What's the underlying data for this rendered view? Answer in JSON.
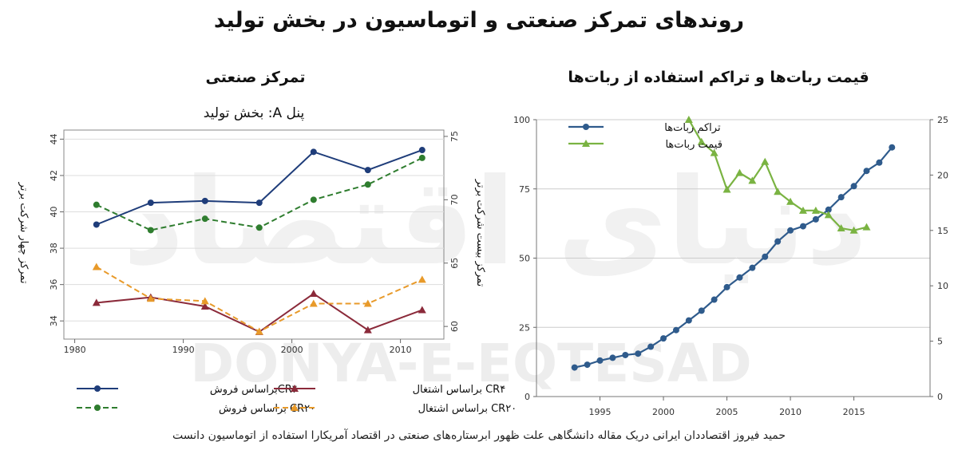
{
  "title": "روندهای تمرکز صنعتی و اتوماسیون در بخش تولید",
  "caption": "حمید فیروز اقتصاددان ایرانی دریک مقاله دانشگاهی علت ظهور ابرستاره‌های صنعتی در اقتصاد آمریکارا استفاده از اتوماسیون دانست",
  "watermark": {
    "latin": "DONYA-E-EQTESAD",
    "persian": "دنیای اقتصاد"
  },
  "colors": {
    "navy": "#1f3d7a",
    "maroon": "#8b2a3a",
    "green": "#2f7d2f",
    "orange": "#e89a2a",
    "blue": "#2f5b8c",
    "lime": "#7ab342"
  },
  "chart_data": [
    {
      "type": "line",
      "section_title": "تمرکز صنعتی",
      "title": "پنل A: بخش تولید",
      "xlabel": "",
      "ylabel_left": "تمرکز چهار شرکت برتر",
      "ylabel_right": "تمرکز بیست شرکت برتر",
      "xlim": [
        1979,
        2014
      ],
      "ylim_left": [
        33,
        44.5
      ],
      "ylim_right": [
        59,
        75.5
      ],
      "x_ticks": [
        1980,
        1990,
        2000,
        2010
      ],
      "y_ticks_left": [
        34,
        36,
        38,
        40,
        42,
        44
      ],
      "y_ticks_right": [
        60,
        65,
        70,
        75
      ],
      "legend": "bottom",
      "x": [
        1982,
        1987,
        1992,
        1997,
        2002,
        2007,
        2012
      ],
      "series": [
        {
          "name": "CR۴براساس فروش",
          "axis": "left",
          "dash": false,
          "marker": "circle",
          "color": "#1f3d7a",
          "values": [
            39.3,
            40.5,
            40.6,
            40.5,
            43.3,
            42.3,
            43.4
          ]
        },
        {
          "name": "CR۴  براساس اشتغال",
          "axis": "left",
          "dash": false,
          "marker": "triangle",
          "color": "#8b2a3a",
          "values": [
            35.0,
            35.3,
            34.8,
            33.4,
            35.5,
            33.5,
            34.6
          ]
        },
        {
          "name": "CR۲۰  براساس فروش",
          "axis": "right",
          "dash": true,
          "marker": "circle",
          "color": "#2f7d2f",
          "values": [
            69.6,
            67.6,
            68.5,
            67.8,
            70.0,
            71.2,
            73.3
          ]
        },
        {
          "name": "CR۲۰  براساس اشتغال",
          "axis": "right",
          "dash": true,
          "marker": "triangle",
          "color": "#e89a2a",
          "values": [
            64.7,
            62.2,
            62.0,
            59.6,
            61.8,
            61.8,
            63.7
          ]
        }
      ]
    },
    {
      "type": "line",
      "section_title": "قیمت ربات‌ها و تراکم استفاده از ربات‌ها",
      "title": "",
      "xlabel": "",
      "xlim": [
        1990,
        2021
      ],
      "ylim_left": [
        0,
        100
      ],
      "ylim_right": [
        0,
        25
      ],
      "x_ticks": [
        1995,
        2000,
        2005,
        2010,
        2015
      ],
      "y_ticks_left": [
        0,
        25,
        50,
        75,
        100
      ],
      "y_ticks_right": [
        0,
        5,
        10,
        15,
        20,
        25
      ],
      "legend": "top-left",
      "series": [
        {
          "name": "تراکم ربات‌ها",
          "axis": "left",
          "marker": "circle",
          "color": "#2f5b8c",
          "x": [
            1993,
            1994,
            1995,
            1996,
            1997,
            1998,
            1999,
            2000,
            2001,
            2002,
            2003,
            2004,
            2005,
            2006,
            2007,
            2008,
            2009,
            2010,
            2011,
            2012,
            2013,
            2014,
            2015,
            2016,
            2017,
            2018
          ],
          "values": [
            10.5,
            11.5,
            13,
            14,
            15,
            15.5,
            18,
            21,
            24,
            27.5,
            31,
            35,
            39.5,
            43,
            46.5,
            50.5,
            56,
            60,
            61.5,
            64,
            67.5,
            72,
            76,
            81.5,
            84.5,
            90
          ]
        },
        {
          "name": "قیمت ربات‌ها",
          "axis": "right",
          "marker": "triangle",
          "color": "#7ab342",
          "x": [
            2002,
            2003,
            2004,
            2005,
            2006,
            2007,
            2008,
            2009,
            2010,
            2011,
            2012,
            2013,
            2014,
            2015,
            2016
          ],
          "values": [
            25,
            23,
            22,
            18.7,
            20.2,
            19.5,
            21.2,
            18.5,
            17.6,
            16.8,
            16.8,
            16.4,
            15.2,
            15,
            15.3
          ]
        }
      ]
    }
  ]
}
